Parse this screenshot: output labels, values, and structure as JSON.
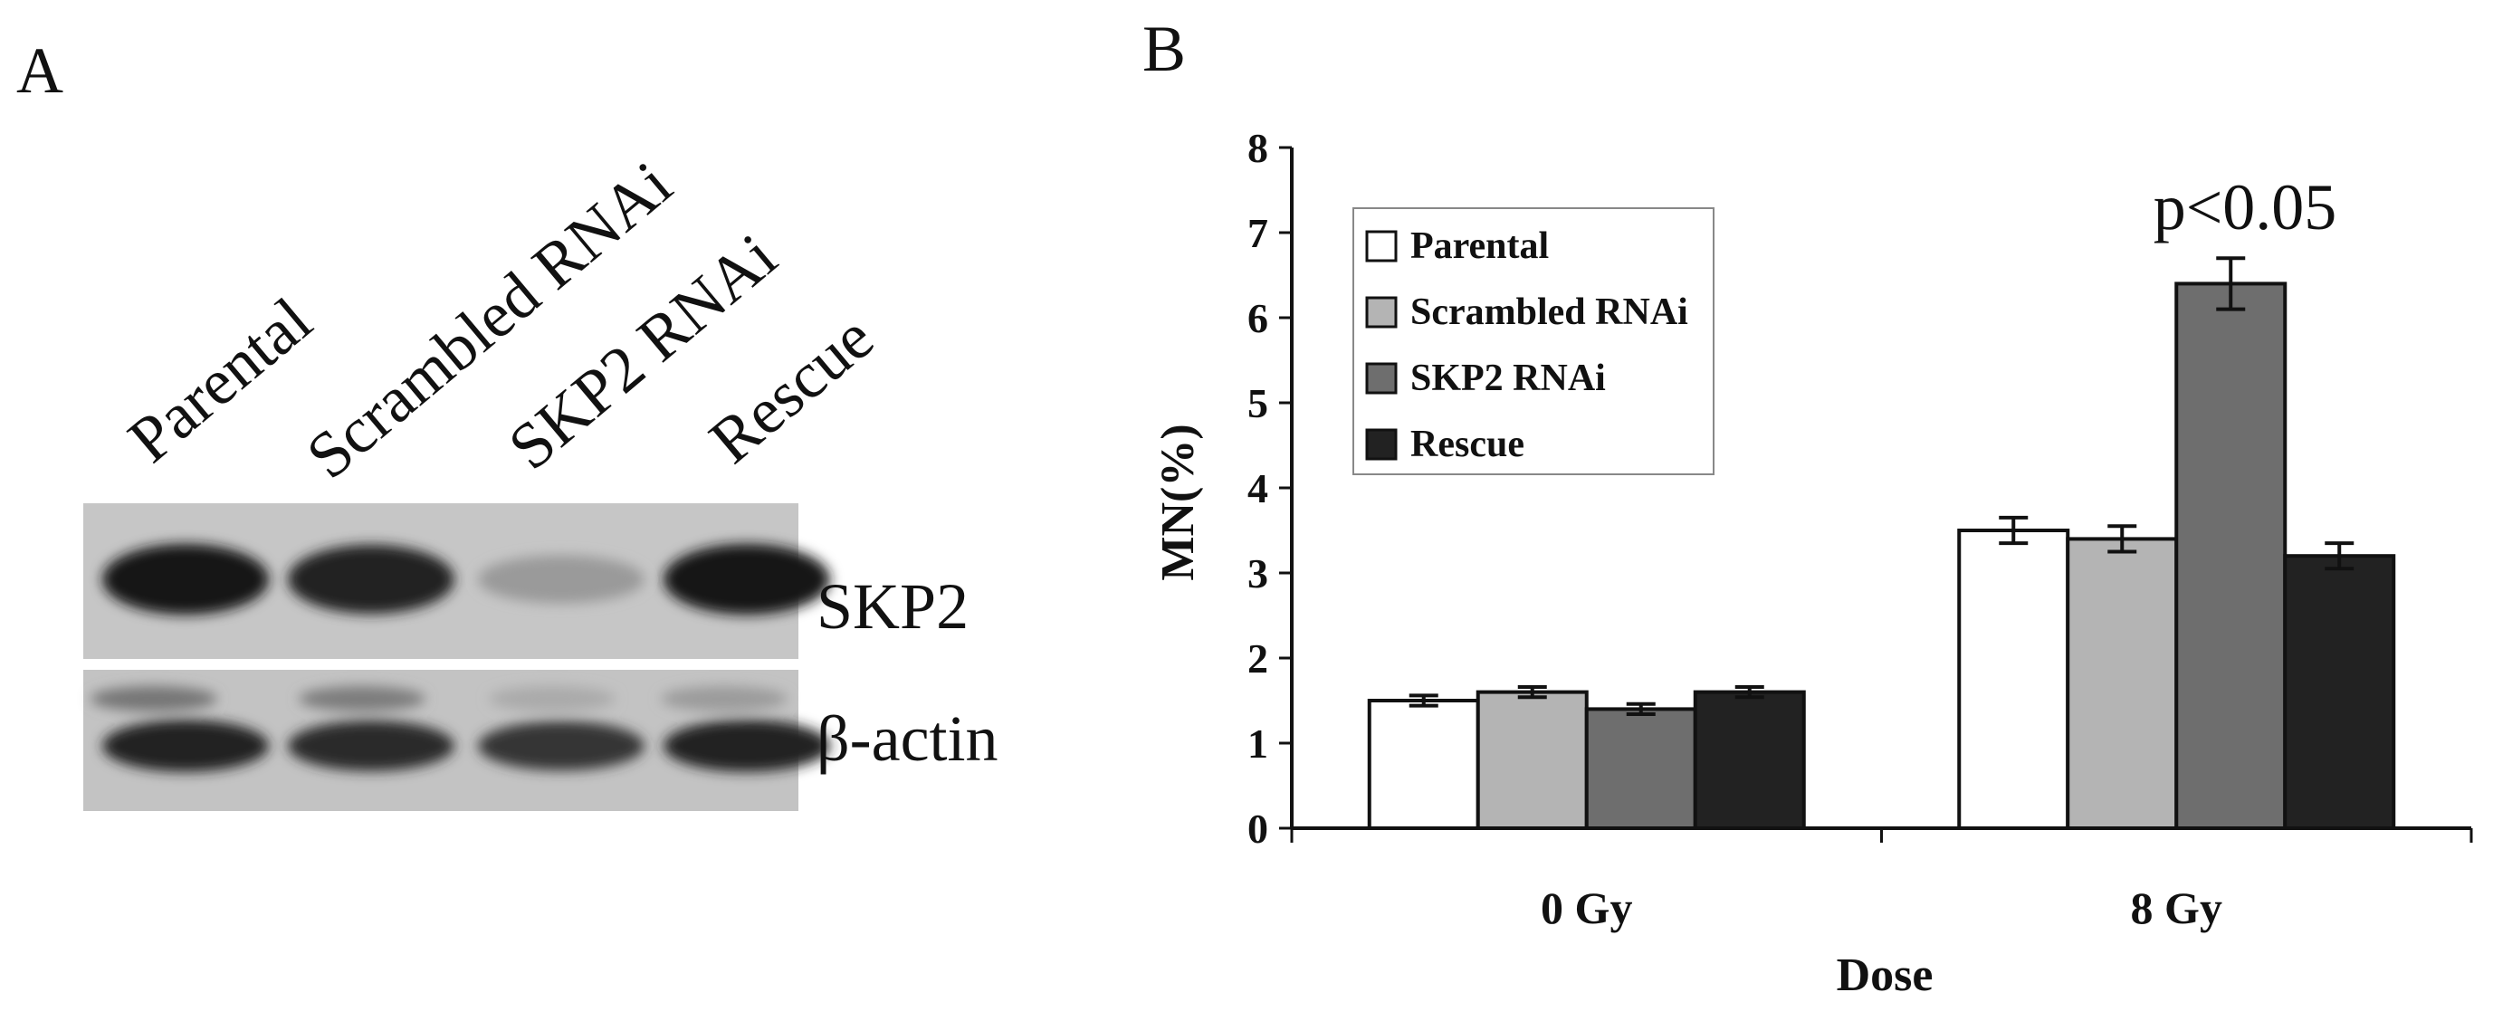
{
  "panel_a": {
    "label": "A",
    "lanes": [
      "Parental",
      "Scrambled RNAi",
      "SKP2 RNAi",
      "Rescue"
    ],
    "blots": [
      {
        "name": "SKP2",
        "band_intensity": [
          0.95,
          0.9,
          0.25,
          0.95
        ]
      },
      {
        "name": "β-actin",
        "band_intensity": [
          0.9,
          0.85,
          0.8,
          0.9
        ]
      }
    ]
  },
  "panel_b": {
    "label": "B",
    "significance": "p<0.05"
  },
  "chart_data": {
    "type": "bar",
    "title": "",
    "xlabel": "Dose",
    "ylabel": "MN(%)",
    "ylim": [
      0,
      8
    ],
    "yticks": [
      "0",
      "1",
      "2",
      "3",
      "4",
      "5",
      "6",
      "7",
      "8"
    ],
    "categories": [
      "0 Gy",
      "8 Gy"
    ],
    "legend_position": "top-left",
    "grid": false,
    "series": [
      {
        "name": "Parental",
        "color": "#ffffff",
        "values": [
          1.5,
          3.5
        ],
        "errors": [
          0.06,
          0.15
        ]
      },
      {
        "name": "Scrambled RNAi",
        "color": "#b4b4b4",
        "values": [
          1.6,
          3.4
        ],
        "errors": [
          0.06,
          0.15
        ]
      },
      {
        "name": "SKP2 RNAi",
        "color": "#6e6e6e",
        "values": [
          1.4,
          6.4
        ],
        "errors": [
          0.06,
          0.3
        ]
      },
      {
        "name": "Rescue",
        "color": "#222222",
        "values": [
          1.6,
          3.2
        ],
        "errors": [
          0.06,
          0.15
        ]
      }
    ]
  }
}
